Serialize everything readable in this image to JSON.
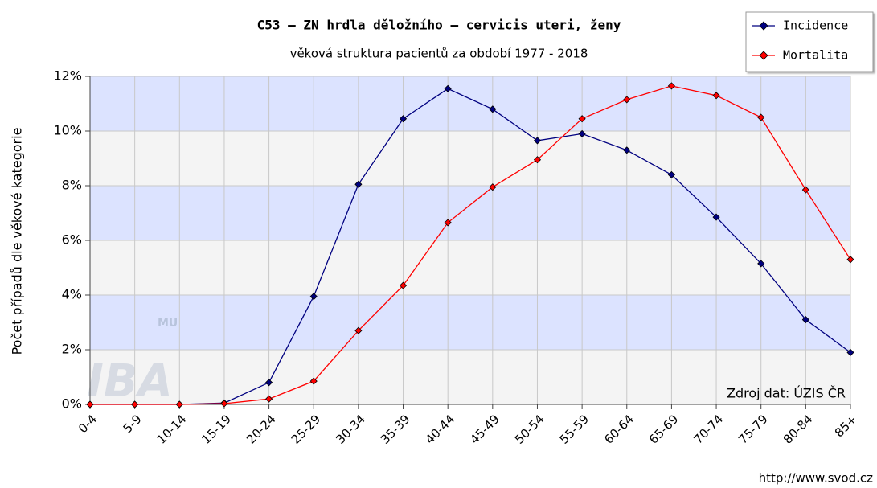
{
  "chart_data": {
    "type": "line",
    "title": "C53 – ZN hrdla děložního – cervicis uteri, ženy",
    "subtitle": "věková struktura pacientů za období 1977 - 2018",
    "y_label": "Počet případů dle věkové kategorie",
    "source": "Zdroj dat: ÚZIS ČR",
    "url": "http://www.svod.cz",
    "watermark": [
      "MU",
      "IBA"
    ],
    "categories": [
      "0-4",
      "5-9",
      "10-14",
      "15-19",
      "20-24",
      "25-29",
      "30-34",
      "35-39",
      "40-44",
      "45-49",
      "50-54",
      "55-59",
      "60-64",
      "65-69",
      "70-74",
      "75-79",
      "80-84",
      "85+"
    ],
    "series": [
      {
        "name": "Incidence",
        "color": "#000080",
        "values": [
          0,
          0,
          0,
          0.05,
          0.8,
          3.95,
          8.05,
          10.45,
          11.55,
          10.8,
          9.65,
          9.9,
          9.3,
          8.4,
          6.85,
          5.15,
          3.1,
          1.9
        ]
      },
      {
        "name": "Mortalita",
        "color": "#ff0000",
        "values": [
          0,
          0,
          0,
          0.03,
          0.2,
          0.85,
          2.7,
          4.35,
          6.65,
          7.95,
          8.95,
          10.45,
          11.15,
          11.65,
          11.3,
          10.5,
          7.85,
          5.3
        ]
      }
    ],
    "ylim": [
      0,
      12
    ],
    "yticks": [
      {
        "value": 0,
        "label": "0%"
      },
      {
        "value": 2,
        "label": "2%"
      },
      {
        "value": 4,
        "label": "4%"
      },
      {
        "value": 6,
        "label": "6%"
      },
      {
        "value": 8,
        "label": "8%"
      },
      {
        "value": 10,
        "label": "10%"
      },
      {
        "value": 12,
        "label": "12%"
      }
    ],
    "grid": true,
    "legend": "top-right"
  }
}
